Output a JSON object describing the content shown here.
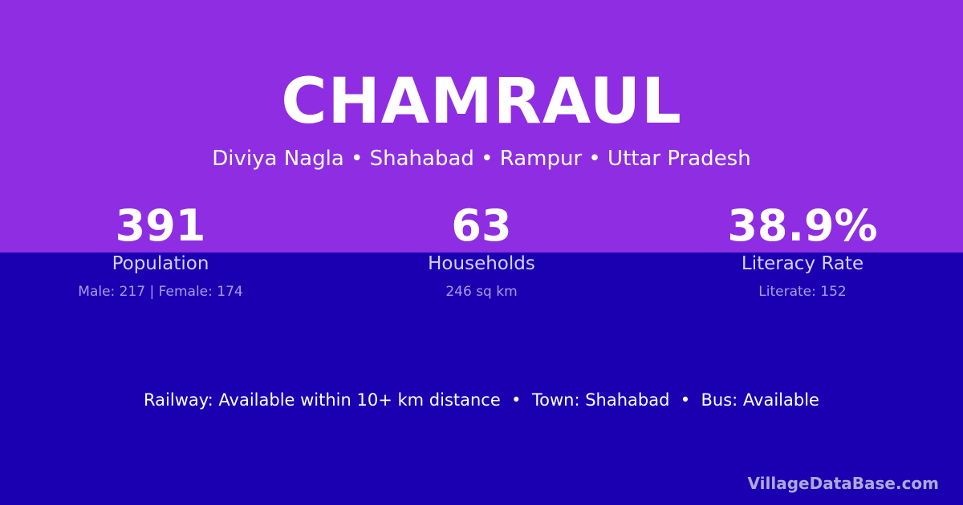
{
  "title": "CHAMRAUL",
  "subtitle": "Diviya Nagla • Shahabad • Rampur • Uttar Pradesh",
  "stats": [
    {
      "value": "391",
      "label": "Population",
      "detail": "Male: 217 | Female: 174"
    },
    {
      "value": "63",
      "label": "Households",
      "detail": "246 sq km"
    },
    {
      "value": "38.9%",
      "label": "Literacy Rate",
      "detail": "Literate: 152"
    }
  ],
  "info": "Railway: Available within 10+ km distance  •  Town: Shahabad  •  Bus: Available",
  "brand": "VillageDataBase.com",
  "colors": {
    "top": "#8e2de2",
    "bottom": "#1a00b0"
  }
}
